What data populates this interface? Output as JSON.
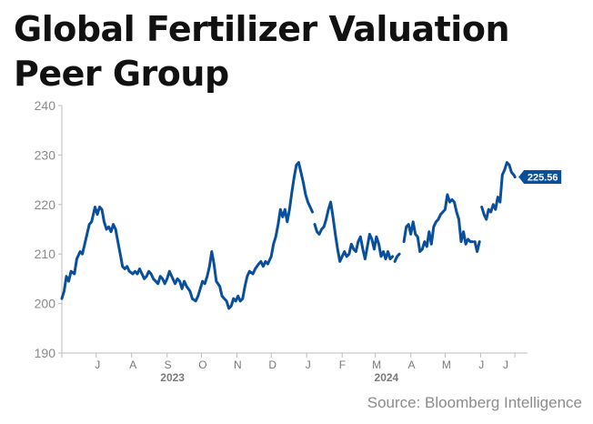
{
  "title_lines": [
    "Global Fertilizer Valuation",
    "Peer Group"
  ],
  "source": "Source: Bloomberg Intelligence",
  "chart_data": {
    "type": "line",
    "title": "Global Fertilizer Valuation Peer Group",
    "xlabel": "",
    "ylabel": "",
    "ylim": [
      190,
      240
    ],
    "yticks": [
      190,
      200,
      210,
      220,
      230,
      240
    ],
    "grid": false,
    "x_range": [
      "2023-06-01",
      "2024-07-12"
    ],
    "x_month_labels": [
      {
        "label": "J",
        "date": "2023-07-01"
      },
      {
        "label": "A",
        "date": "2023-08-01"
      },
      {
        "label": "S",
        "date": "2023-09-01"
      },
      {
        "label": "O",
        "date": "2023-10-01"
      },
      {
        "label": "N",
        "date": "2023-11-01"
      },
      {
        "label": "D",
        "date": "2023-12-01"
      },
      {
        "label": "J",
        "date": "2024-01-01"
      },
      {
        "label": "F",
        "date": "2024-02-01"
      },
      {
        "label": "M",
        "date": "2024-03-01"
      },
      {
        "label": "A",
        "date": "2024-04-01"
      },
      {
        "label": "M",
        "date": "2024-05-01"
      },
      {
        "label": "J",
        "date": "2024-06-01"
      },
      {
        "label": "J",
        "date": "2024-07-01"
      }
    ],
    "year_labels": [
      {
        "label": "2023",
        "date": "2023-09-20"
      },
      {
        "label": "2024",
        "date": "2024-03-25"
      }
    ],
    "last_value_label": "225.56",
    "series_color": "#0a4f9c",
    "series": [
      {
        "name": "",
        "segments": [
          [
            [
              "2023-06-01",
              201.0
            ],
            [
              "2023-06-03",
              202.5
            ],
            [
              "2023-06-05",
              205.5
            ],
            [
              "2023-06-07",
              204.5
            ],
            [
              "2023-06-09",
              206.5
            ],
            [
              "2023-06-12",
              206.0
            ],
            [
              "2023-06-14",
              209.0
            ],
            [
              "2023-06-17",
              210.5
            ],
            [
              "2023-06-19",
              210.0
            ],
            [
              "2023-06-22",
              213.0
            ],
            [
              "2023-06-25",
              216.0
            ],
            [
              "2023-06-27",
              216.5
            ],
            [
              "2023-06-30",
              219.5
            ],
            [
              "2023-07-02",
              218.0
            ],
            [
              "2023-07-04",
              219.5
            ],
            [
              "2023-07-06",
              219.0
            ],
            [
              "2023-07-08",
              216.5
            ],
            [
              "2023-07-10",
              215.0
            ],
            [
              "2023-07-12",
              215.5
            ],
            [
              "2023-07-14",
              214.5
            ],
            [
              "2023-07-16",
              216.0
            ],
            [
              "2023-07-18",
              215.0
            ],
            [
              "2023-07-20",
              212.5
            ],
            [
              "2023-07-22",
              210.0
            ],
            [
              "2023-07-24",
              207.5
            ],
            [
              "2023-07-26",
              207.0
            ],
            [
              "2023-07-28",
              207.5
            ],
            [
              "2023-07-30",
              206.5
            ],
            [
              "2023-08-02",
              206.0
            ],
            [
              "2023-08-04",
              206.5
            ],
            [
              "2023-08-06",
              206.0
            ],
            [
              "2023-08-08",
              207.0
            ],
            [
              "2023-08-10",
              206.0
            ],
            [
              "2023-08-12",
              205.0
            ],
            [
              "2023-08-14",
              205.5
            ],
            [
              "2023-08-16",
              206.5
            ],
            [
              "2023-08-18",
              206.0
            ],
            [
              "2023-08-20",
              205.0
            ],
            [
              "2023-08-22",
              204.5
            ],
            [
              "2023-08-24",
              204.0
            ],
            [
              "2023-08-26",
              205.5
            ],
            [
              "2023-08-28",
              205.0
            ],
            [
              "2023-08-30",
              204.0
            ],
            [
              "2023-09-01",
              205.0
            ],
            [
              "2023-09-03",
              206.5
            ],
            [
              "2023-09-05",
              205.5
            ],
            [
              "2023-09-08",
              204.0
            ],
            [
              "2023-09-10",
              205.0
            ],
            [
              "2023-09-12",
              204.5
            ],
            [
              "2023-09-14",
              203.0
            ],
            [
              "2023-09-16",
              204.5
            ],
            [
              "2023-09-18",
              203.5
            ],
            [
              "2023-09-21",
              202.5
            ],
            [
              "2023-09-23",
              201.0
            ],
            [
              "2023-09-26",
              200.5
            ],
            [
              "2023-09-28",
              201.5
            ],
            [
              "2023-09-30",
              203.0
            ],
            [
              "2023-10-02",
              204.5
            ],
            [
              "2023-10-04",
              204.0
            ],
            [
              "2023-10-06",
              205.5
            ],
            [
              "2023-10-08",
              207.5
            ],
            [
              "2023-10-10",
              210.5
            ],
            [
              "2023-10-12",
              208.0
            ],
            [
              "2023-10-14",
              204.5
            ],
            [
              "2023-10-17",
              203.5
            ],
            [
              "2023-10-19",
              201.5
            ],
            [
              "2023-10-21",
              201.0
            ],
            [
              "2023-10-23",
              200.5
            ],
            [
              "2023-10-25",
              199.0
            ],
            [
              "2023-10-27",
              199.5
            ],
            [
              "2023-10-29",
              201.0
            ],
            [
              "2023-10-31",
              200.5
            ],
            [
              "2023-11-02",
              201.5
            ],
            [
              "2023-11-04",
              200.5
            ],
            [
              "2023-11-06",
              201.0
            ],
            [
              "2023-11-08",
              203.5
            ],
            [
              "2023-11-10",
              205.5
            ],
            [
              "2023-11-12",
              206.5
            ],
            [
              "2023-11-15",
              206.0
            ],
            [
              "2023-11-17",
              207.0
            ],
            [
              "2023-11-20",
              208.0
            ],
            [
              "2023-11-22",
              208.5
            ],
            [
              "2023-11-24",
              207.5
            ],
            [
              "2023-11-26",
              208.5
            ],
            [
              "2023-11-28",
              208.0
            ],
            [
              "2023-12-01",
              209.5
            ],
            [
              "2023-12-03",
              212.0
            ],
            [
              "2023-12-05",
              213.5
            ],
            [
              "2023-12-07",
              216.0
            ],
            [
              "2023-12-09",
              219.0
            ],
            [
              "2023-12-11",
              217.5
            ],
            [
              "2023-12-13",
              219.0
            ],
            [
              "2023-12-15",
              216.5
            ],
            [
              "2023-12-17",
              219.0
            ],
            [
              "2023-12-19",
              222.5
            ],
            [
              "2023-12-21",
              225.5
            ],
            [
              "2023-12-23",
              228.0
            ],
            [
              "2023-12-25",
              228.5
            ],
            [
              "2023-12-27",
              226.5
            ],
            [
              "2023-12-29",
              224.5
            ],
            [
              "2023-12-31",
              222.0
            ],
            [
              "2024-01-02",
              220.5
            ],
            [
              "2024-01-04",
              219.5
            ],
            [
              "2024-01-06",
              218.5
            ]
          ],
          [
            [
              "2024-01-08",
              216.0
            ],
            [
              "2024-01-10",
              214.5
            ],
            [
              "2024-01-12",
              214.0
            ],
            [
              "2024-01-14",
              215.0
            ],
            [
              "2024-01-16",
              215.5
            ],
            [
              "2024-01-18",
              217.0
            ],
            [
              "2024-01-20",
              219.0
            ],
            [
              "2024-01-22",
              220.5
            ],
            [
              "2024-01-24",
              217.5
            ],
            [
              "2024-01-26",
              214.0
            ],
            [
              "2024-01-28",
              211.0
            ],
            [
              "2024-01-30",
              208.5
            ],
            [
              "2024-02-01",
              209.5
            ],
            [
              "2024-02-03",
              210.5
            ],
            [
              "2024-02-05",
              209.5
            ],
            [
              "2024-02-07",
              210.0
            ],
            [
              "2024-02-09",
              212.0
            ],
            [
              "2024-02-11",
              211.0
            ],
            [
              "2024-02-13",
              210.5
            ],
            [
              "2024-02-15",
              212.5
            ],
            [
              "2024-02-17",
              213.5
            ],
            [
              "2024-02-19",
              211.0
            ],
            [
              "2024-02-21",
              209.0
            ],
            [
              "2024-02-23",
              211.5
            ],
            [
              "2024-02-25",
              214.0
            ],
            [
              "2024-02-27",
              213.0
            ],
            [
              "2024-02-29",
              211.0
            ],
            [
              "2024-03-02",
              213.5
            ],
            [
              "2024-03-04",
              212.0
            ],
            [
              "2024-03-06",
              209.5
            ],
            [
              "2024-03-08",
              210.5
            ],
            [
              "2024-03-10",
              209.0
            ],
            [
              "2024-03-12",
              210.5
            ],
            [
              "2024-03-14",
              209.0
            ],
            [
              "2024-03-16",
              209.5
            ]
          ],
          [
            [
              "2024-03-18",
              208.5
            ],
            [
              "2024-03-20",
              209.5
            ],
            [
              "2024-03-22",
              210.0
            ]
          ],
          [
            [
              "2024-03-26",
              212.5
            ],
            [
              "2024-03-28",
              215.5
            ],
            [
              "2024-03-30",
              216.0
            ],
            [
              "2024-04-01",
              214.0
            ],
            [
              "2024-04-03",
              216.5
            ],
            [
              "2024-04-05",
              214.0
            ],
            [
              "2024-04-07",
              213.5
            ],
            [
              "2024-04-09",
              210.5
            ],
            [
              "2024-04-11",
              211.0
            ],
            [
              "2024-04-13",
              212.5
            ],
            [
              "2024-04-15",
              211.5
            ],
            [
              "2024-04-17",
              214.5
            ],
            [
              "2024-04-19",
              212.0
            ],
            [
              "2024-04-21",
              215.5
            ],
            [
              "2024-04-23",
              216.5
            ],
            [
              "2024-04-25",
              217.0
            ],
            [
              "2024-04-27",
              218.0
            ],
            [
              "2024-04-29",
              218.5
            ],
            [
              "2024-05-01",
              219.0
            ],
            [
              "2024-05-03",
              222.0
            ],
            [
              "2024-05-05",
              220.5
            ],
            [
              "2024-05-07",
              221.0
            ],
            [
              "2024-05-09",
              220.5
            ],
            [
              "2024-05-11",
              218.5
            ],
            [
              "2024-05-13",
              217.0
            ],
            [
              "2024-05-15",
              212.5
            ],
            [
              "2024-05-17",
              214.5
            ],
            [
              "2024-05-19",
              212.0
            ],
            [
              "2024-05-21",
              213.0
            ],
            [
              "2024-05-23",
              212.5
            ],
            [
              "2024-05-25",
              212.5
            ]
          ],
          [
            [
              "2024-05-27",
              212.5
            ],
            [
              "2024-05-29",
              210.5
            ],
            [
              "2024-05-31",
              212.5
            ]
          ],
          [
            [
              "2024-06-02",
              219.5
            ],
            [
              "2024-06-04",
              218.0
            ],
            [
              "2024-06-06",
              217.0
            ],
            [
              "2024-06-08",
              219.0
            ],
            [
              "2024-06-10",
              218.5
            ],
            [
              "2024-06-12",
              220.0
            ],
            [
              "2024-06-14",
              219.0
            ],
            [
              "2024-06-16",
              221.5
            ],
            [
              "2024-06-18",
              220.5
            ],
            [
              "2024-06-20",
              226.0
            ],
            [
              "2024-06-22",
              227.0
            ],
            [
              "2024-06-24",
              228.5
            ],
            [
              "2024-06-26",
              228.0
            ],
            [
              "2024-06-28",
              226.5
            ],
            [
              "2024-06-30",
              226.0
            ],
            [
              "2024-07-01",
              225.56
            ]
          ]
        ]
      }
    ]
  }
}
